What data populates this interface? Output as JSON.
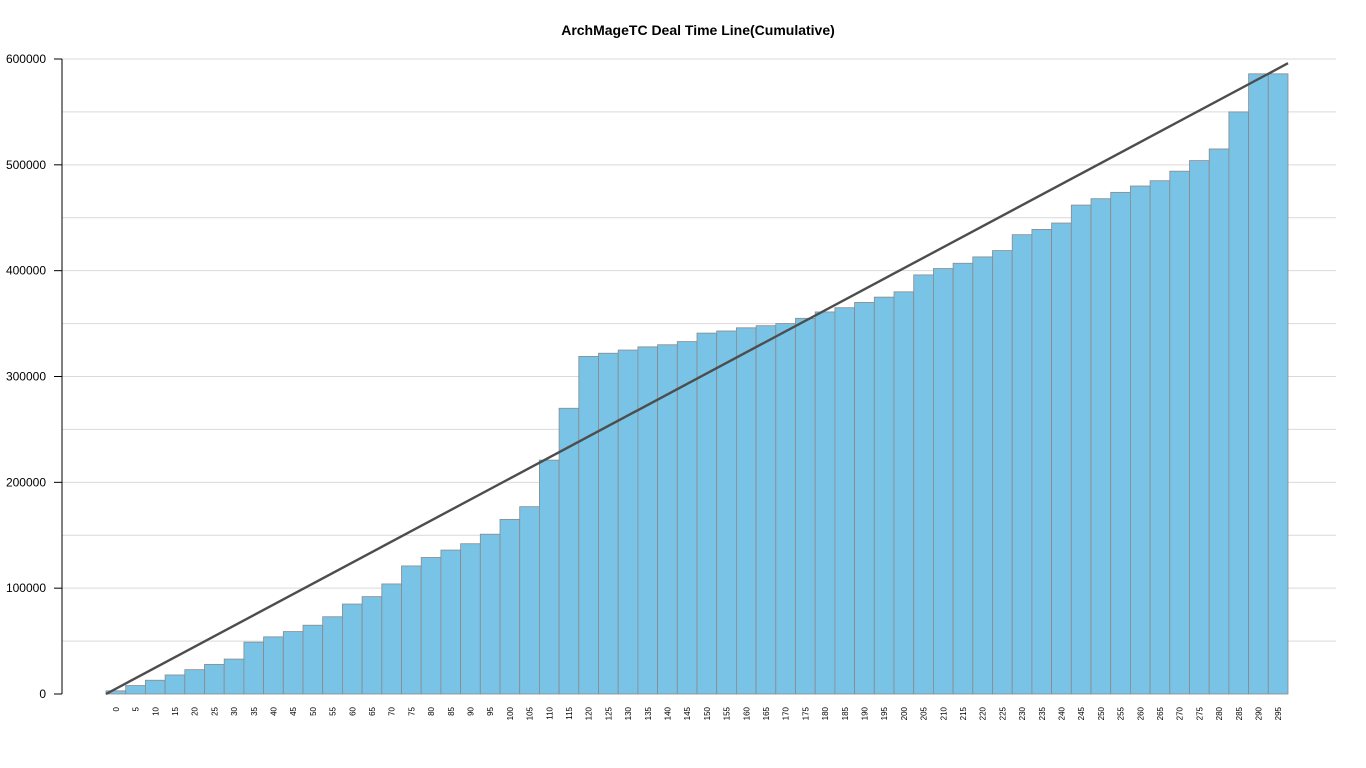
{
  "chart_data": {
    "type": "bar",
    "title": "ArchMageTC Deal Time Line(Cumulative)",
    "xlabel": "",
    "ylabel": "",
    "categories": [
      "0",
      "5",
      "10",
      "15",
      "20",
      "25",
      "30",
      "35",
      "40",
      "45",
      "50",
      "55",
      "60",
      "65",
      "70",
      "75",
      "80",
      "85",
      "90",
      "95",
      "100",
      "105",
      "110",
      "115",
      "120",
      "125",
      "130",
      "135",
      "140",
      "145",
      "150",
      "155",
      "160",
      "165",
      "170",
      "175",
      "180",
      "185",
      "190",
      "195",
      "200",
      "205",
      "210",
      "215",
      "220",
      "225",
      "230",
      "235",
      "240",
      "245",
      "250",
      "255",
      "260",
      "265",
      "270",
      "275",
      "280",
      "285",
      "290",
      "295"
    ],
    "series": [
      {
        "values": [
          3000,
          8000,
          13000,
          18000,
          23000,
          28000,
          33000,
          49000,
          54000,
          59000,
          65000,
          73000,
          85000,
          92000,
          104000,
          121000,
          129000,
          136000,
          142000,
          151000,
          165000,
          177000,
          221000,
          270000,
          319000,
          322000,
          325000,
          328000,
          330000,
          333000,
          341000,
          343000,
          346000,
          348000,
          350000,
          355000,
          361000,
          365000,
          370000,
          375000,
          380000,
          396000,
          402000,
          407000,
          413000,
          419000,
          434000,
          439000,
          445000,
          462000,
          468000,
          474000,
          480000,
          485000,
          494000,
          504000,
          515000,
          550000,
          586000,
          586000
        ]
      }
    ],
    "trend_line": {
      "start": [
        0,
        0
      ],
      "end": [
        295,
        596000
      ]
    },
    "ylim": [
      0,
      600000
    ],
    "yticks": [
      0,
      100000,
      200000,
      300000,
      400000,
      500000,
      600000
    ],
    "ytick_labels": [
      "0",
      "100000",
      "200000",
      "300000",
      "400000",
      "500000",
      "600000"
    ],
    "grid": true,
    "legend": "none",
    "colors": {
      "bar_fill": "#78c3e6",
      "bar_stroke": "#8a8a8a",
      "trend_line": "#4d4d4d",
      "grid": "#d9d9d9",
      "axis": "#000000"
    }
  }
}
